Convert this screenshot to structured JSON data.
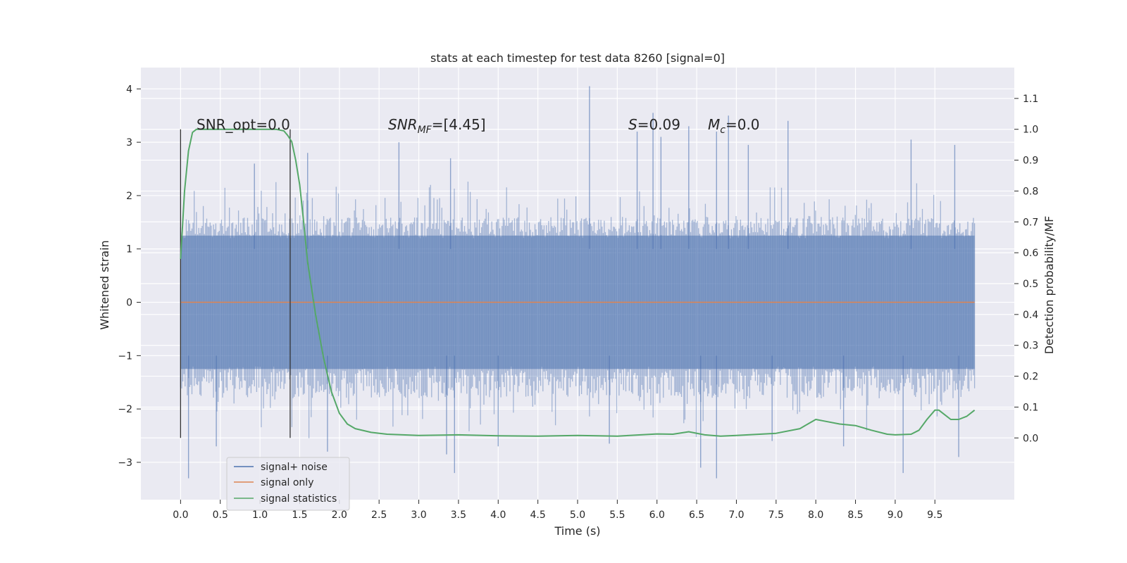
{
  "chart_data": {
    "type": "line",
    "title": "stats at each timestep for test data 8260 [signal=0]",
    "xlabel": "Time (s)",
    "ylabel": "Whitened strain",
    "y2label": "Detection probability/MF",
    "xlim": [
      -0.5,
      10.5
    ],
    "ylim": [
      -3.7,
      4.4
    ],
    "y2lim": [
      -0.2,
      1.2
    ],
    "x_ticks": [
      "0.0",
      "0.5",
      "1.0",
      "1.5",
      "2.0",
      "2.5",
      "3.0",
      "3.5",
      "4.0",
      "4.5",
      "5.0",
      "5.5",
      "6.0",
      "6.5",
      "7.0",
      "7.5",
      "8.0",
      "8.5",
      "9.0",
      "9.5"
    ],
    "y_ticks": [
      "−3",
      "−2",
      "−1",
      "0",
      "1",
      "2",
      "3",
      "4"
    ],
    "y2_ticks": [
      "0.0",
      "0.1",
      "0.2",
      "0.3",
      "0.4",
      "0.5",
      "0.6",
      "0.7",
      "0.8",
      "0.9",
      "1.0",
      "1.1"
    ],
    "grid": true,
    "legend_position": "lower-left",
    "colors": {
      "signal_noise": "#4c72b0",
      "signal_only": "#dd8452",
      "signal_statistics": "#55a868",
      "plot_background": "#eaeaf2",
      "markers": "#333333"
    },
    "annotations": {
      "snr_opt": "SNR_opt=0.0",
      "snr_mf_sym": "SNR",
      "snr_mf_sub": "MF",
      "snr_mf_val": "=[4.45]",
      "s_sym": "S",
      "s_val": "=0.09",
      "mc_sym": "M",
      "mc_sub": "c",
      "mc_val": "=0.0"
    },
    "vertical_markers_x": [
      0.0,
      1.38
    ],
    "series": [
      {
        "name": "signal+ noise",
        "axis": "left",
        "style": "band",
        "x_range": [
          0.0,
          10.0
        ],
        "typical_range": [
          -1.8,
          1.6
        ],
        "max": 4.05,
        "min": -3.3,
        "spikes_up": [
          [
            0.93,
            2.6
          ],
          [
            1.6,
            2.8
          ],
          [
            2.75,
            3.0
          ],
          [
            3.4,
            2.7
          ],
          [
            5.15,
            4.05
          ],
          [
            5.75,
            3.2
          ],
          [
            5.95,
            3.55
          ],
          [
            6.05,
            3.1
          ],
          [
            6.4,
            3.3
          ],
          [
            6.75,
            3.2
          ],
          [
            6.9,
            3.5
          ],
          [
            7.15,
            2.95
          ],
          [
            7.65,
            3.4
          ],
          [
            9.2,
            3.05
          ],
          [
            9.75,
            2.95
          ]
        ],
        "spikes_down": [
          [
            0.1,
            -3.3
          ],
          [
            0.45,
            -2.7
          ],
          [
            1.85,
            -2.8
          ],
          [
            3.35,
            -2.85
          ],
          [
            3.45,
            -3.2
          ],
          [
            4.0,
            -2.7
          ],
          [
            5.4,
            -2.65
          ],
          [
            6.55,
            -3.1
          ],
          [
            6.75,
            -3.3
          ],
          [
            7.45,
            -2.6
          ],
          [
            8.35,
            -2.7
          ],
          [
            9.1,
            -3.2
          ],
          [
            9.8,
            -2.9
          ]
        ]
      },
      {
        "name": "signal only",
        "axis": "left",
        "x": [
          0.0,
          10.0
        ],
        "y": [
          0.0,
          0.0
        ]
      },
      {
        "name": "signal statistics",
        "axis": "right",
        "x": [
          0.0,
          0.05,
          0.1,
          0.15,
          0.2,
          0.3,
          0.5,
          0.8,
          1.0,
          1.2,
          1.3,
          1.35,
          1.4,
          1.45,
          1.5,
          1.55,
          1.6,
          1.7,
          1.8,
          1.9,
          2.0,
          2.1,
          2.2,
          2.4,
          2.6,
          3.0,
          3.5,
          4.0,
          4.5,
          5.0,
          5.5,
          6.0,
          6.2,
          6.4,
          6.6,
          6.8,
          7.0,
          7.5,
          7.8,
          7.9,
          8.0,
          8.1,
          8.3,
          8.5,
          8.7,
          8.9,
          9.0,
          9.2,
          9.3,
          9.4,
          9.5,
          9.55,
          9.6,
          9.7,
          9.8,
          9.9,
          10.0
        ],
        "y": [
          0.58,
          0.8,
          0.93,
          0.99,
          1.0,
          1.0,
          1.0,
          1.0,
          1.0,
          1.0,
          0.995,
          0.98,
          0.96,
          0.9,
          0.82,
          0.7,
          0.57,
          0.4,
          0.26,
          0.15,
          0.08,
          0.045,
          0.03,
          0.018,
          0.012,
          0.008,
          0.01,
          0.007,
          0.006,
          0.008,
          0.006,
          0.013,
          0.012,
          0.02,
          0.01,
          0.006,
          0.008,
          0.015,
          0.03,
          0.045,
          0.06,
          0.055,
          0.045,
          0.04,
          0.025,
          0.012,
          0.01,
          0.012,
          0.025,
          0.06,
          0.09,
          0.09,
          0.08,
          0.06,
          0.06,
          0.07,
          0.09
        ]
      }
    ]
  }
}
